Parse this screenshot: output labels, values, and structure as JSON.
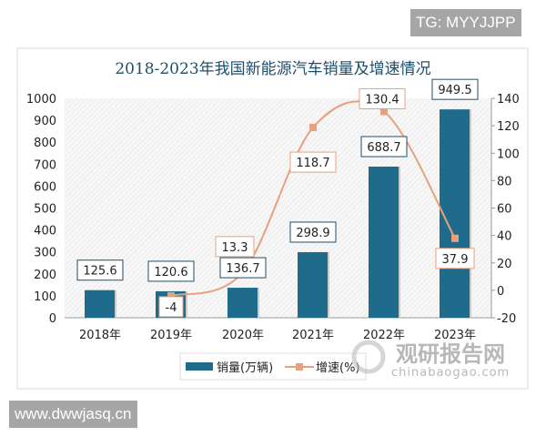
{
  "overlay": {
    "top_tag": "TG: MYYJJPP",
    "bottom_tag": "www.dwwjasq.cn"
  },
  "watermark": {
    "name": "观研报告网",
    "url": "chinabaogao.com"
  },
  "colors": {
    "bar": "#1f6b8c",
    "line": "#e8a07e",
    "title": "#1f4e6b"
  },
  "chart_data": {
    "type": "bar+line",
    "title": "2018-2023年我国新能源汽车销量及增速情况",
    "categories": [
      "2018年",
      "2019年",
      "2020年",
      "2021年",
      "2022年",
      "2023年"
    ],
    "series": [
      {
        "name": "销量(万辆)",
        "type": "bar",
        "axis": "left",
        "values": [
          125.6,
          120.6,
          136.7,
          298.9,
          688.7,
          949.5
        ],
        "labels": [
          "125.6",
          "120.6",
          "136.7",
          "298.9",
          "688.7",
          "949.5"
        ]
      },
      {
        "name": "增速(%)",
        "type": "line",
        "axis": "right",
        "values": [
          null,
          -4,
          13.3,
          118.7,
          130.4,
          37.9
        ],
        "labels": [
          "",
          "-4",
          "13.3",
          "118.7",
          "130.4",
          "37.9"
        ]
      }
    ],
    "y_left": {
      "range": [
        0,
        1000
      ],
      "ticks": [
        "0",
        "100",
        "200",
        "300",
        "400",
        "500",
        "600",
        "700",
        "800",
        "900",
        "1000"
      ]
    },
    "y_right": {
      "range": [
        -20,
        140
      ],
      "ticks": [
        "-20",
        "0",
        "20",
        "40",
        "60",
        "80",
        "100",
        "120",
        "140"
      ]
    },
    "grid": false,
    "legend": "bottom"
  }
}
